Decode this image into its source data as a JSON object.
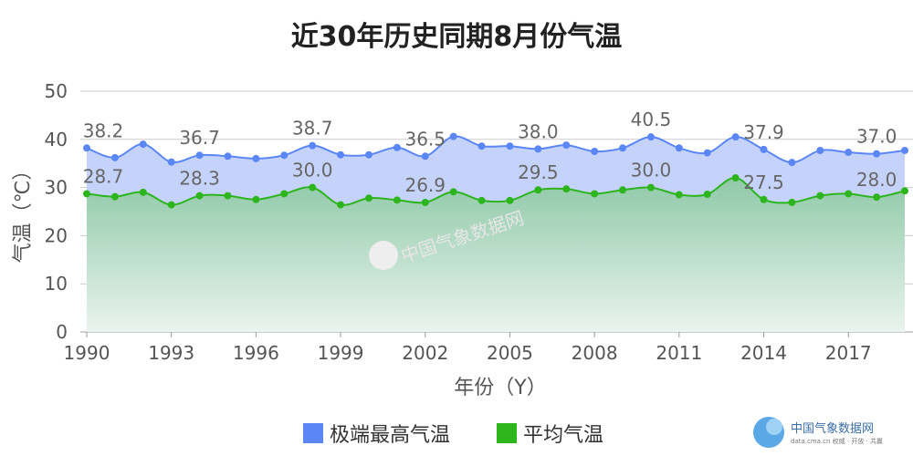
{
  "chart_data": {
    "type": "area",
    "title": "近30年历史同期8月份气温",
    "xlabel": "年份（Y）",
    "ylabel": "气温（℃）",
    "ylim": [
      0,
      50
    ],
    "yticks": [
      "0",
      "10",
      "20",
      "30",
      "40",
      "50"
    ],
    "x": [
      1990,
      1991,
      1992,
      1993,
      1994,
      1995,
      1996,
      1997,
      1998,
      1999,
      2000,
      2001,
      2002,
      2003,
      2004,
      2005,
      2006,
      2007,
      2008,
      2009,
      2010,
      2011,
      2012,
      2013,
      2014,
      2015,
      2016,
      2017,
      2018,
      2019
    ],
    "xticks": [
      "1990",
      "1993",
      "1996",
      "1999",
      "2002",
      "2005",
      "2008",
      "2011",
      "2014",
      "2017"
    ],
    "series": [
      {
        "name": "极端最高气温",
        "color": "#5b86f5",
        "fill": "#c5d3fb",
        "values": [
          38.2,
          36.2,
          39.0,
          35.3,
          36.7,
          36.5,
          36.0,
          36.7,
          38.7,
          36.8,
          36.8,
          38.3,
          36.5,
          40.6,
          38.6,
          38.6,
          38.0,
          38.8,
          37.5,
          38.2,
          40.5,
          38.2,
          37.2,
          40.5,
          37.9,
          35.2,
          37.7,
          37.3,
          37.0,
          37.7
        ],
        "labels": [
          "38.2",
          "",
          "",
          "",
          "36.7",
          "",
          "",
          "",
          "38.7",
          "",
          "",
          "",
          "36.5",
          "",
          "",
          "",
          "38.0",
          "",
          "",
          "",
          "40.5",
          "",
          "",
          "",
          "37.9",
          "",
          "",
          "",
          "37.0",
          ""
        ]
      },
      {
        "name": "平均气温",
        "color": "#2db51e",
        "fill": "#8fc9a8",
        "values": [
          28.7,
          28.1,
          29.0,
          26.4,
          28.3,
          28.3,
          27.5,
          28.7,
          30.0,
          26.4,
          27.8,
          27.4,
          26.9,
          29.1,
          27.3,
          27.3,
          29.5,
          29.7,
          28.7,
          29.5,
          30.0,
          28.5,
          28.6,
          32.0,
          27.5,
          26.9,
          28.3,
          28.7,
          28.0,
          29.3
        ],
        "labels": [
          "28.7",
          "",
          "",
          "",
          "28.3",
          "",
          "",
          "",
          "30.0",
          "",
          "",
          "",
          "26.9",
          "",
          "",
          "",
          "29.5",
          "",
          "",
          "",
          "30.0",
          "",
          "",
          "",
          "27.5",
          "",
          "",
          "",
          "28.0",
          ""
        ]
      }
    ],
    "grid": true,
    "legend": "bottom"
  },
  "watermark": {
    "name": "中国气象数据网",
    "sub": "data.cma.cn 权威 · 开放 · 共赢"
  }
}
